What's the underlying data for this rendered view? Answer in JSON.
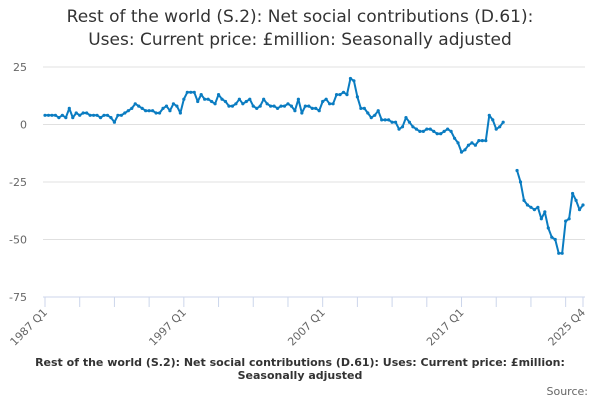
{
  "chart_data": {
    "type": "line",
    "title_line1": "Rest of the world (S.2): Net social contributions (D.61):",
    "title_line2": "Uses: Current price: £million: Seasonally adjusted",
    "footer_title": "Rest of the world (S.2): Net social contributions (D.61): Uses: Current price: £million: Seasonally adjusted",
    "source_label": "Source:",
    "xlabel": "",
    "ylabel": "",
    "frequency": "quarterly",
    "x_start": "1987 Q1",
    "x_end": "2025 Q4",
    "x_tick_labels": [
      "1987 Q1",
      "1997 Q1",
      "2007 Q1",
      "2017 Q1",
      "2025 Q4"
    ],
    "y_ticks": [
      25,
      0,
      -25,
      -50,
      -75
    ],
    "ylim": [
      -75,
      25
    ],
    "grid": true,
    "line_color": "#0a7cc1",
    "series": [
      {
        "values": [
          4,
          4,
          4,
          4,
          3,
          4,
          3,
          7,
          3,
          5,
          4,
          5,
          5,
          4,
          4,
          4,
          3,
          4,
          4,
          3,
          1,
          4,
          4,
          5,
          6,
          7,
          9,
          8,
          7,
          6,
          6,
          6,
          5,
          5,
          7,
          8,
          6,
          9,
          8,
          5,
          11,
          14,
          14,
          14,
          10,
          13,
          11,
          11,
          10,
          9,
          13,
          11,
          10,
          8,
          8,
          9,
          11,
          9,
          10,
          11,
          8,
          7,
          8,
          11,
          9,
          8,
          8,
          7,
          8,
          8,
          9,
          8,
          6,
          11,
          5,
          8,
          8,
          7,
          7,
          6,
          10,
          11,
          9,
          9,
          13,
          13,
          14,
          13,
          20,
          19,
          12,
          7,
          7,
          5,
          3,
          4,
          6,
          2,
          2,
          2,
          1,
          1,
          -2,
          -1,
          3,
          1,
          -1,
          -2,
          -3,
          -3,
          -2,
          -2,
          -3,
          -4,
          -4,
          -3,
          -2,
          -3,
          -6,
          -8,
          -12,
          -11,
          -9,
          -8,
          -9,
          -7,
          -7,
          -7,
          4,
          2,
          -2,
          -1,
          1,
          null,
          null,
          null,
          -20,
          -25,
          -33,
          -35,
          -36,
          -37,
          -36,
          -41,
          -38,
          -45,
          -49,
          -50,
          -56,
          -56,
          -42,
          -41,
          -30,
          -33,
          -37,
          -35
        ]
      }
    ]
  }
}
